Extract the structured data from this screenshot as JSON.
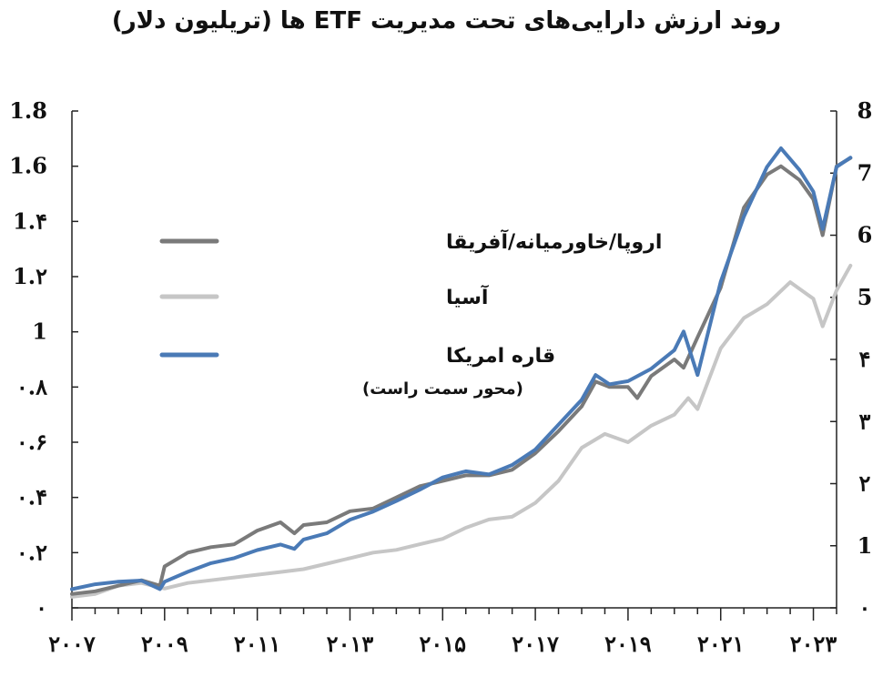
{
  "chart_data": {
    "type": "line",
    "title": "روند ارزش دارایی‌های تحت مدیریت ETF ها (تریلیون دلار)",
    "x_ticks": [
      "۲۰۰۷",
      "۲۰۰۹",
      "۲۰۱۱",
      "۲۰۱۳",
      "۲۰۱۵",
      "۲۰۱۷",
      "۲۰۱۹",
      "۲۰۲۱",
      "۲۰۲۳"
    ],
    "xlim": [
      2007,
      2023.5
    ],
    "y_left": {
      "ticks": [
        "۰",
        "۰.۲",
        "۰.۴",
        "۰.۶",
        "۰.۸",
        "1",
        "1.۲",
        "1.۴",
        "1.6",
        "1.8"
      ],
      "ylim": [
        0,
        1.8
      ]
    },
    "y_right": {
      "ticks": [
        "۰",
        "1",
        "۲",
        "۳",
        "۴",
        "5",
        "6",
        "7",
        "8"
      ],
      "ylim": [
        0,
        8
      ]
    },
    "grid": false,
    "legend_placement": "left-center",
    "series": [
      {
        "name": "اروپا/خاورمیانه/آفریقا",
        "axis": "left",
        "color": "#7a7a7a",
        "points": [
          [
            2007,
            0.05
          ],
          [
            2007.5,
            0.06
          ],
          [
            2008,
            0.08
          ],
          [
            2008.5,
            0.1
          ],
          [
            2008.9,
            0.08
          ],
          [
            2009,
            0.15
          ],
          [
            2009.5,
            0.2
          ],
          [
            2010,
            0.22
          ],
          [
            2010.5,
            0.23
          ],
          [
            2011,
            0.28
          ],
          [
            2011.5,
            0.31
          ],
          [
            2011.8,
            0.27
          ],
          [
            2012,
            0.3
          ],
          [
            2012.5,
            0.31
          ],
          [
            2013,
            0.35
          ],
          [
            2013.5,
            0.36
          ],
          [
            2014,
            0.4
          ],
          [
            2014.5,
            0.44
          ],
          [
            2015,
            0.46
          ],
          [
            2015.5,
            0.48
          ],
          [
            2016,
            0.48
          ],
          [
            2016.5,
            0.5
          ],
          [
            2017,
            0.56
          ],
          [
            2017.5,
            0.64
          ],
          [
            2018,
            0.73
          ],
          [
            2018.3,
            0.82
          ],
          [
            2018.6,
            0.8
          ],
          [
            2019,
            0.8
          ],
          [
            2019.2,
            0.76
          ],
          [
            2019.5,
            0.84
          ],
          [
            2020,
            0.9
          ],
          [
            2020.2,
            0.87
          ],
          [
            2020.5,
            0.98
          ],
          [
            2021,
            1.16
          ],
          [
            2021.5,
            1.45
          ],
          [
            2022,
            1.57
          ],
          [
            2022.3,
            1.6
          ],
          [
            2022.7,
            1.55
          ],
          [
            2023,
            1.48
          ],
          [
            2023.2,
            1.35
          ],
          [
            2023.5,
            1.6
          ],
          [
            2023.8,
            1.63
          ]
        ]
      },
      {
        "name": "آسیا",
        "axis": "left",
        "color": "#c6c6c6",
        "points": [
          [
            2007,
            0.04
          ],
          [
            2007.5,
            0.05
          ],
          [
            2008,
            0.08
          ],
          [
            2008.5,
            0.09
          ],
          [
            2009,
            0.07
          ],
          [
            2009.5,
            0.09
          ],
          [
            2010,
            0.1
          ],
          [
            2010.5,
            0.11
          ],
          [
            2011,
            0.12
          ],
          [
            2011.5,
            0.13
          ],
          [
            2012,
            0.14
          ],
          [
            2012.5,
            0.16
          ],
          [
            2013,
            0.18
          ],
          [
            2013.5,
            0.2
          ],
          [
            2014,
            0.21
          ],
          [
            2014.5,
            0.23
          ],
          [
            2015,
            0.25
          ],
          [
            2015.5,
            0.29
          ],
          [
            2016,
            0.32
          ],
          [
            2016.5,
            0.33
          ],
          [
            2017,
            0.38
          ],
          [
            2017.5,
            0.46
          ],
          [
            2018,
            0.58
          ],
          [
            2018.5,
            0.63
          ],
          [
            2019,
            0.6
          ],
          [
            2019.5,
            0.66
          ],
          [
            2020,
            0.7
          ],
          [
            2020.3,
            0.76
          ],
          [
            2020.5,
            0.72
          ],
          [
            2021,
            0.94
          ],
          [
            2021.5,
            1.05
          ],
          [
            2022,
            1.1
          ],
          [
            2022.5,
            1.18
          ],
          [
            2023,
            1.12
          ],
          [
            2023.2,
            1.02
          ],
          [
            2023.5,
            1.15
          ],
          [
            2023.8,
            1.24
          ]
        ]
      },
      {
        "name": "قاره امریکا",
        "note": "(محور سمت راست)",
        "axis": "right",
        "color": "#4a7ab6",
        "points": [
          [
            2007,
            0.3
          ],
          [
            2007.5,
            0.38
          ],
          [
            2008,
            0.42
          ],
          [
            2008.5,
            0.44
          ],
          [
            2008.9,
            0.3
          ],
          [
            2009,
            0.42
          ],
          [
            2009.5,
            0.58
          ],
          [
            2010,
            0.72
          ],
          [
            2010.5,
            0.8
          ],
          [
            2011,
            0.93
          ],
          [
            2011.5,
            1.02
          ],
          [
            2011.8,
            0.95
          ],
          [
            2012,
            1.1
          ],
          [
            2012.5,
            1.2
          ],
          [
            2013,
            1.42
          ],
          [
            2013.5,
            1.55
          ],
          [
            2014,
            1.72
          ],
          [
            2014.5,
            1.9
          ],
          [
            2015,
            2.1
          ],
          [
            2015.5,
            2.2
          ],
          [
            2016,
            2.15
          ],
          [
            2016.5,
            2.3
          ],
          [
            2017,
            2.55
          ],
          [
            2017.5,
            2.95
          ],
          [
            2018,
            3.35
          ],
          [
            2018.3,
            3.75
          ],
          [
            2018.6,
            3.6
          ],
          [
            2019,
            3.65
          ],
          [
            2019.5,
            3.85
          ],
          [
            2020,
            4.15
          ],
          [
            2020.2,
            4.45
          ],
          [
            2020.5,
            3.75
          ],
          [
            2021,
            5.25
          ],
          [
            2021.5,
            6.3
          ],
          [
            2022,
            7.1
          ],
          [
            2022.3,
            7.4
          ],
          [
            2022.7,
            7.05
          ],
          [
            2023,
            6.7
          ],
          [
            2023.2,
            6.1
          ],
          [
            2023.5,
            7.1
          ],
          [
            2023.8,
            7.25
          ]
        ]
      }
    ]
  }
}
